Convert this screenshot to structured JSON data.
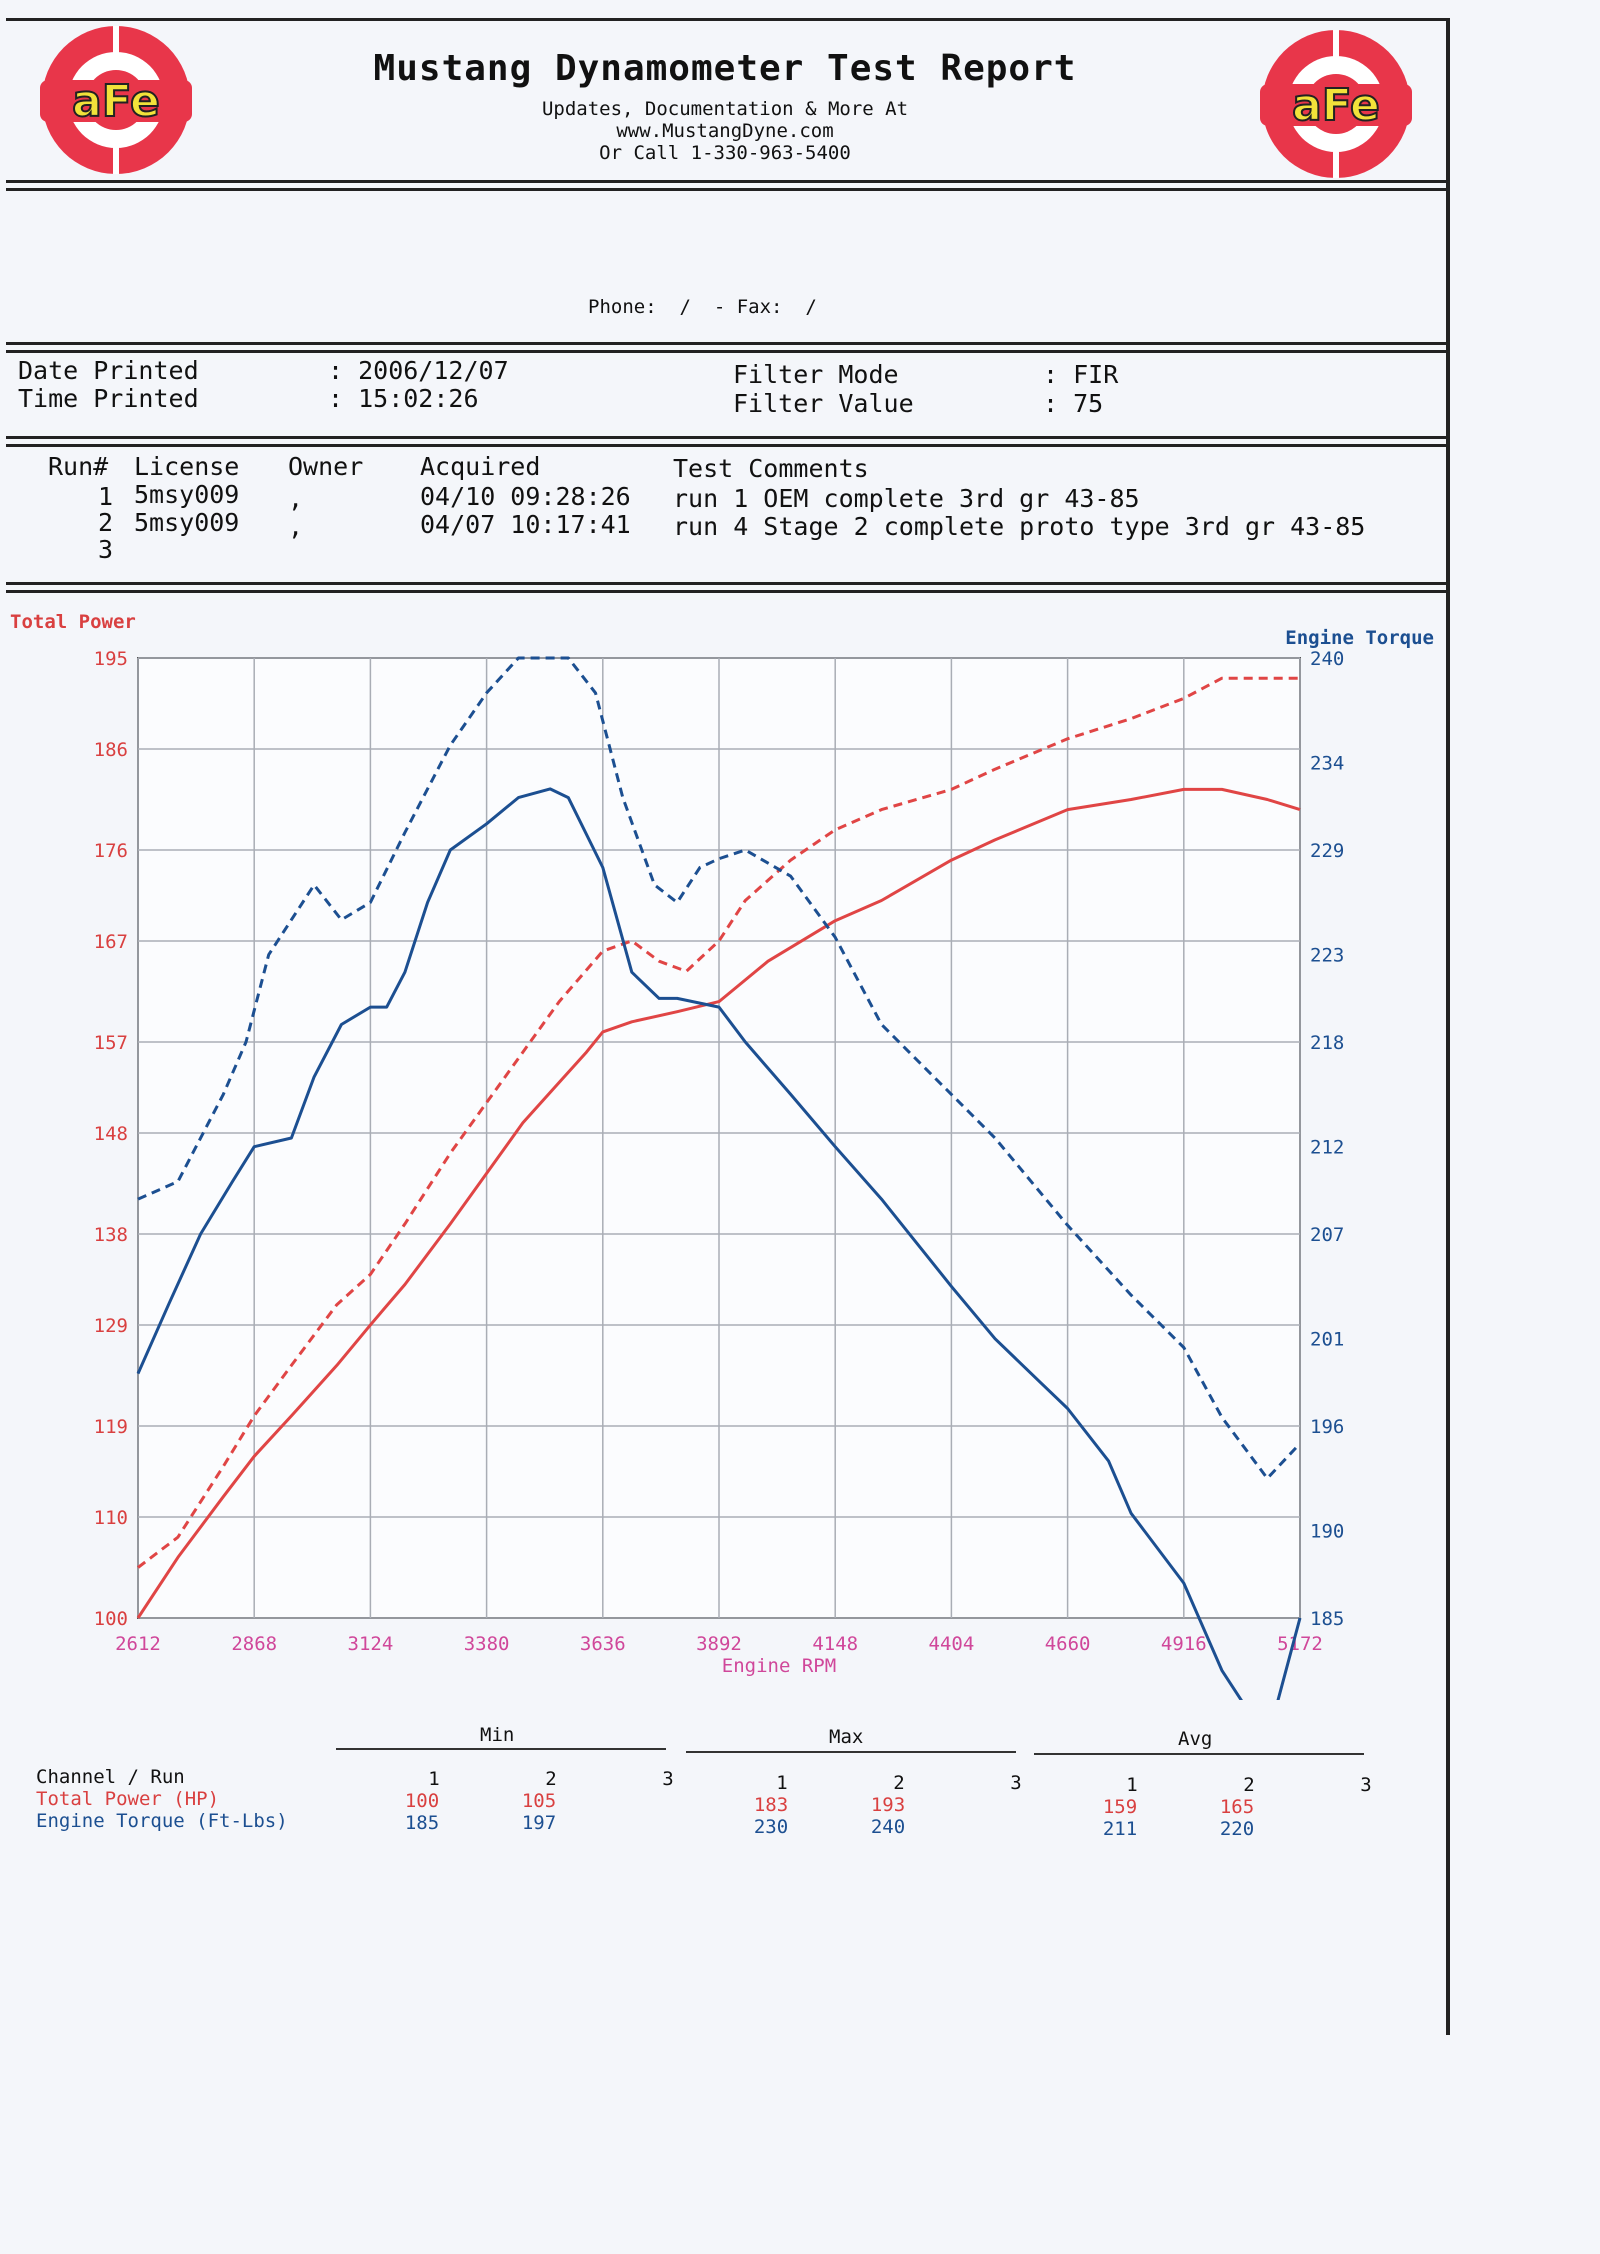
{
  "header": {
    "title": "Mustang Dynamometer Test Report",
    "line1": "Updates, Documentation & More At",
    "line2": "www.MustangDyne.com",
    "line3": "Or Call 1-330-963-5400",
    "logo_text": "aFe",
    "contact": "Phone:  /  - Fax:  /",
    "colors": {
      "logo_red": "#e8364a",
      "logo_yellow": "#f2e23a"
    }
  },
  "print_info": {
    "date_label": "Date Printed",
    "date_value": ": 2006/12/07",
    "time_label": "Time Printed",
    "time_value": ": 15:02:26",
    "filter_mode_label": "Filter Mode",
    "filter_mode_value": ": FIR",
    "filter_value_label": "Filter Value",
    "filter_value_value": ": 75"
  },
  "runs": {
    "headers": {
      "run": "Run#",
      "license": "License",
      "owner": "Owner",
      "acquired": "Acquired",
      "comments": "Test Comments"
    },
    "rows": [
      {
        "run": "1",
        "license": "5msy009",
        "owner": ",",
        "acquired": "04/10 09:28:26",
        "comments": "run 1 OEM complete 3rd gr 43-85"
      },
      {
        "run": "2",
        "license": "5msy009",
        "owner": ",",
        "acquired": "04/07 10:17:41",
        "comments": "run 4 Stage 2 complete proto type 3rd gr 43-85"
      },
      {
        "run": "3",
        "license": "",
        "owner": "",
        "acquired": "",
        "comments": ""
      }
    ]
  },
  "chart_data": {
    "type": "line",
    "left_axis_label": "Total Power",
    "right_axis_label": "Engine Torque",
    "xlabel": "Engine RPM",
    "xlim": [
      2612,
      5172
    ],
    "x_ticks": [
      2612,
      2868,
      3124,
      3380,
      3636,
      3892,
      4148,
      4404,
      4660,
      4916,
      5172
    ],
    "ylim_left": [
      100,
      195
    ],
    "y_ticks_left": [
      100,
      110,
      119,
      129,
      138,
      148,
      157,
      167,
      176,
      186,
      195
    ],
    "ylim_right": [
      185,
      240
    ],
    "y_ticks_right": [
      185,
      190,
      196,
      201,
      207,
      212,
      218,
      223,
      229,
      234,
      240
    ],
    "grid": true,
    "colors": {
      "power": "#e04545",
      "torque": "#1c4f91",
      "left_axis": "#d94040",
      "right_axis": "#1c4f91",
      "x_axis": "#d0479a"
    },
    "series": [
      {
        "measure": "Total Power",
        "run": "1",
        "style": "solid",
        "axis": "left",
        "x": [
          2612,
          2700,
          2800,
          2868,
          2950,
          3050,
          3124,
          3200,
          3300,
          3380,
          3460,
          3540,
          3600,
          3636,
          3700,
          3800,
          3892,
          4000,
          4148,
          4250,
          4404,
          4500,
          4660,
          4800,
          4916,
          5000,
          5100,
          5172
        ],
        "y": [
          100,
          106,
          112,
          116,
          120,
          125,
          129,
          133,
          139,
          144,
          149,
          153,
          156,
          158,
          159,
          160,
          161,
          165,
          169,
          171,
          175,
          177,
          180,
          181,
          182,
          182,
          181,
          180
        ]
      },
      {
        "measure": "Total Power",
        "run": "2",
        "style": "dashed",
        "axis": "left",
        "x": [
          2612,
          2700,
          2800,
          2868,
          2950,
          3050,
          3124,
          3200,
          3300,
          3380,
          3460,
          3540,
          3636,
          3700,
          3760,
          3820,
          3892,
          3950,
          4050,
          4148,
          4250,
          4404,
          4500,
          4660,
          4800,
          4916,
          5000,
          5100,
          5172
        ],
        "y": [
          105,
          108,
          115,
          120,
          125,
          131,
          134,
          139,
          146,
          151,
          156,
          161,
          166,
          167,
          165,
          164,
          167,
          171,
          175,
          178,
          180,
          182,
          184,
          187,
          189,
          191,
          193,
          193,
          193
        ]
      },
      {
        "measure": "Engine Torque",
        "run": "1",
        "style": "solid",
        "axis": "right",
        "x": [
          2612,
          2680,
          2750,
          2820,
          2868,
          2950,
          3000,
          3060,
          3124,
          3160,
          3200,
          3250,
          3300,
          3380,
          3450,
          3520,
          3560,
          3636,
          3700,
          3760,
          3800,
          3892,
          3950,
          4050,
          4148,
          4250,
          4404,
          4500,
          4600,
          4660,
          4750,
          4800,
          4916,
          5000,
          5100,
          5172
        ],
        "y": [
          199,
          203,
          207,
          210,
          212,
          212.5,
          216,
          219,
          220,
          220,
          222,
          226,
          229,
          230.5,
          232,
          232.5,
          232,
          228,
          222,
          220.5,
          220.5,
          220,
          218,
          215,
          212,
          209,
          204,
          201,
          198.5,
          197,
          194,
          191,
          187,
          182,
          178,
          185
        ]
      },
      {
        "measure": "Engine Torque",
        "run": "2",
        "style": "dashed",
        "axis": "right",
        "x": [
          2612,
          2700,
          2800,
          2850,
          2900,
          3000,
          3060,
          3124,
          3200,
          3300,
          3380,
          3450,
          3520,
          3560,
          3620,
          3680,
          3750,
          3800,
          3850,
          3892,
          3950,
          4050,
          4148,
          4250,
          4404,
          4500,
          4660,
          4800,
          4916,
          5000,
          5100,
          5172
        ],
        "y": [
          209,
          210,
          215,
          218,
          223,
          227,
          225,
          226,
          230,
          235,
          238,
          240,
          240,
          240,
          238,
          232,
          227,
          226,
          228,
          228.5,
          229,
          227.5,
          224,
          219,
          215,
          212.5,
          207.5,
          203.5,
          200.5,
          196.5,
          193,
          195
        ]
      }
    ]
  },
  "summary": {
    "groups": [
      "Min",
      "Max",
      "Avg"
    ],
    "channel_header": "Channel / Run",
    "run_labels": [
      "1",
      "2",
      "3"
    ],
    "rows": [
      {
        "channel": "Total Power (HP)",
        "min": [
          "100",
          "105",
          ""
        ],
        "max": [
          "183",
          "193",
          ""
        ],
        "avg": [
          "159",
          "165",
          ""
        ]
      },
      {
        "channel": "Engine Torque (Ft-Lbs)",
        "min": [
          "185",
          "197",
          ""
        ],
        "max": [
          "230",
          "240",
          ""
        ],
        "avg": [
          "211",
          "220",
          ""
        ]
      }
    ]
  }
}
